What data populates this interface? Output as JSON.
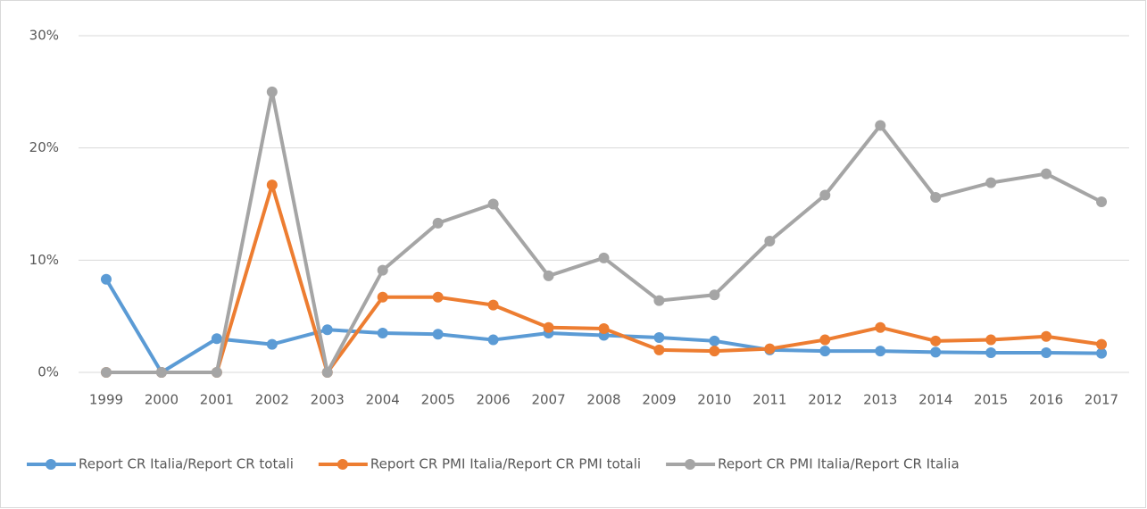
{
  "chart_data": {
    "type": "line",
    "categories": [
      "1999",
      "2000",
      "2001",
      "2002",
      "2003",
      "2004",
      "2005",
      "2006",
      "2007",
      "2008",
      "2009",
      "2010",
      "2011",
      "2012",
      "2013",
      "2014",
      "2015",
      "2016",
      "2017"
    ],
    "series": [
      {
        "name": "Report CR Italia/Report CR totali",
        "color": "#5b9bd5",
        "values": [
          8.3,
          0,
          3.0,
          2.5,
          3.8,
          3.5,
          3.4,
          2.9,
          3.5,
          3.3,
          3.1,
          2.8,
          2.0,
          1.9,
          1.9,
          1.8,
          1.75,
          1.75,
          1.7
        ]
      },
      {
        "name": "Report CR PMI Italia/Report CR PMI totali",
        "color": "#ed7d31",
        "values": [
          0,
          0,
          0,
          16.7,
          0,
          6.7,
          6.7,
          6.0,
          4.0,
          3.9,
          2.0,
          1.9,
          2.1,
          2.9,
          4.0,
          2.8,
          2.9,
          3.2,
          2.5
        ]
      },
      {
        "name": "Report CR PMI Italia/Report CR Italia",
        "color": "#a5a5a5",
        "values": [
          0,
          0,
          0,
          25.0,
          0,
          9.1,
          13.3,
          15.0,
          8.6,
          10.2,
          6.4,
          6.9,
          11.7,
          15.8,
          22.0,
          15.6,
          16.9,
          17.7,
          15.2
        ]
      }
    ],
    "ylim": [
      0,
      30
    ],
    "yticks": [
      {
        "value": 0,
        "label": "0%"
      },
      {
        "value": 10,
        "label": "10%"
      },
      {
        "value": 20,
        "label": "20%"
      },
      {
        "value": 30,
        "label": "30%"
      }
    ],
    "grid": true,
    "legend": "bottom"
  }
}
